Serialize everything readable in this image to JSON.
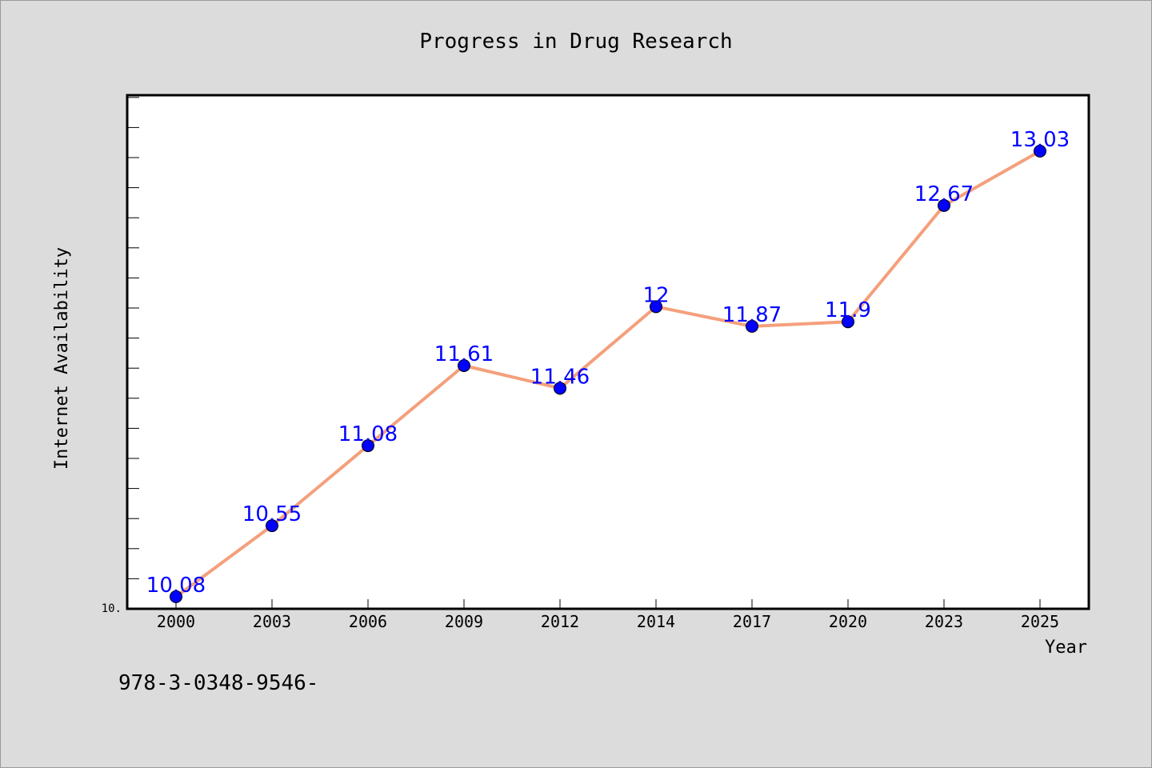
{
  "chart_data": {
    "type": "line",
    "title": "Progress in Drug Research",
    "xlabel": "Year",
    "ylabel": "Internet Availability",
    "categories": [
      "2000",
      "2003",
      "2006",
      "2009",
      "2012",
      "2014",
      "2017",
      "2020",
      "2023",
      "2025"
    ],
    "values": [
      10.08,
      10.55,
      11.08,
      11.61,
      11.46,
      12,
      11.87,
      11.9,
      12.67,
      13.03
    ],
    "data_labels": [
      "10.08",
      "10.55",
      "11.08",
      "11.61",
      "11.46",
      "12",
      "11.87",
      "11.9",
      "12.67",
      "13.03"
    ],
    "ylim": [
      10,
      13.4
    ],
    "y_tick_label": "10.",
    "grid": false,
    "legend": "none",
    "line_color": "#f4a07c",
    "marker_color": "#0000ff",
    "label_color": "#0000ff"
  },
  "footnote": "978-3-0348-9546-"
}
